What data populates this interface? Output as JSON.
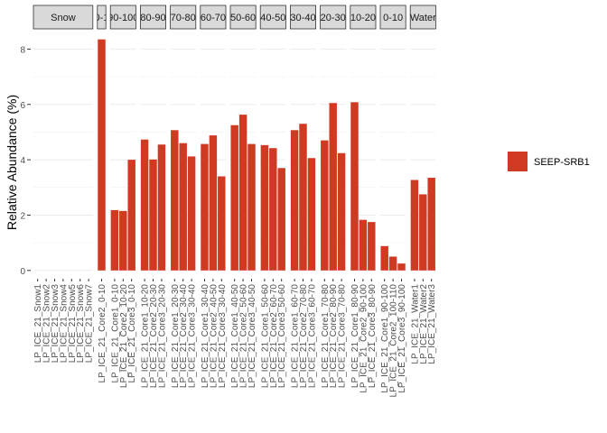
{
  "chart_data": {
    "type": "bar",
    "ylabel": "Relative Abundance (%)",
    "xlabel": "",
    "ylim": [
      -0.3,
      8.6
    ],
    "yticks": [
      0,
      2,
      4,
      6,
      8
    ],
    "grid": true,
    "legend_position": "right",
    "series": [
      {
        "name": "SEEP-SRB1",
        "color": "#d03a22"
      }
    ],
    "panels": [
      {
        "label": "Snow",
        "samples": [
          {
            "name": "LP_ICE_21_Snow1",
            "value": 0
          },
          {
            "name": "LP_ICE_21_Snow2",
            "value": 0
          },
          {
            "name": "LP_ICE_21_Snow3",
            "value": 0
          },
          {
            "name": "LP_ICE_21_Snow4",
            "value": 0
          },
          {
            "name": "LP_ICE_21_Snow5",
            "value": 0
          },
          {
            "name": "LP_ICE_21_Snow6",
            "value": 0
          },
          {
            "name": "LP_ICE_21_Snow7",
            "value": 0
          }
        ]
      },
      {
        "label": "0-1",
        "samples": [
          {
            "name": "LP_ICE_21_Core2_0-10",
            "value": 8.35
          }
        ]
      },
      {
        "label": "90-100",
        "samples": [
          {
            "name": "LP_ICE_21_Core1_0-10",
            "value": 2.18
          },
          {
            "name": "LP_ICE_21_Core2_10-20",
            "value": 2.15
          },
          {
            "name": "LP_ICE_21_Core3_0-10",
            "value": 4.0
          }
        ]
      },
      {
        "label": "80-90",
        "samples": [
          {
            "name": "LP_ICE_21_Core1_10-20",
            "value": 4.73
          },
          {
            "name": "LP_ICE_21_Core2_20-30",
            "value": 4.01
          },
          {
            "name": "LP_ICE_21_Core3_20-30",
            "value": 4.55
          }
        ]
      },
      {
        "label": "70-80",
        "samples": [
          {
            "name": "LP_ICE_21_Core1_20-30",
            "value": 5.07
          },
          {
            "name": "LP_ICE_21_Core2_30-40",
            "value": 4.6
          },
          {
            "name": "LP_ICE_21_Core3_30-40",
            "value": 4.12
          }
        ]
      },
      {
        "label": "60-70",
        "samples": [
          {
            "name": "LP_ICE_21_Core1_30-40",
            "value": 4.57
          },
          {
            "name": "LP_ICE_21_Core2_40-50",
            "value": 4.88
          },
          {
            "name": "LP_ICE_21_Core3_30-40",
            "value": 3.4
          }
        ]
      },
      {
        "label": "50-60",
        "samples": [
          {
            "name": "LP_ICE_21_Core1_40-50",
            "value": 5.25
          },
          {
            "name": "LP_ICE_21_Core2_50-60",
            "value": 5.63
          },
          {
            "name": "LP_ICE_21_Core3_40-50",
            "value": 4.57
          }
        ]
      },
      {
        "label": "40-50",
        "samples": [
          {
            "name": "LP_ICE_21_Core1_50-60",
            "value": 4.53
          },
          {
            "name": "LP_ICE_21_Core2_60-70",
            "value": 4.42
          },
          {
            "name": "LP_ICE_21_Core3_50-60",
            "value": 3.7
          }
        ]
      },
      {
        "label": "30-40",
        "samples": [
          {
            "name": "LP_ICE_21_Core1_60-70",
            "value": 5.07
          },
          {
            "name": "LP_ICE_21_Core2_70-80",
            "value": 5.3
          },
          {
            "name": "LP_ICE_21_Core3_60-70",
            "value": 4.06
          }
        ]
      },
      {
        "label": "20-30",
        "samples": [
          {
            "name": "LP_ICE_21_Core1_70-80",
            "value": 4.7
          },
          {
            "name": "LP_ICE_21_Core2_80-90",
            "value": 6.05
          },
          {
            "name": "LP_ICE_21_Core3_70-80",
            "value": 4.24
          }
        ]
      },
      {
        "label": "10-20",
        "samples": [
          {
            "name": "LP_ICE_21_Core1_80-90",
            "value": 6.08
          },
          {
            "name": "LP_ICE_21_Core2_90-100",
            "value": 1.83
          },
          {
            "name": "LP_ICE_21_Core3_80-90",
            "value": 1.75
          }
        ]
      },
      {
        "label": "0-10",
        "samples": [
          {
            "name": "LP_ICE_21_Core1_90-100",
            "value": 0.88
          },
          {
            "name": "LP_ICE_21_Core2_100-110",
            "value": 0.5
          },
          {
            "name": "LP_ICE_21_Core3_90-100",
            "value": 0.25
          }
        ]
      },
      {
        "label": "Water",
        "samples": [
          {
            "name": "LP_ICE_21_Water1",
            "value": 3.27
          },
          {
            "name": "LP_ICE_21_Water2",
            "value": 2.75
          },
          {
            "name": "LP_ICE_21_Water3",
            "value": 3.35
          }
        ]
      }
    ]
  }
}
